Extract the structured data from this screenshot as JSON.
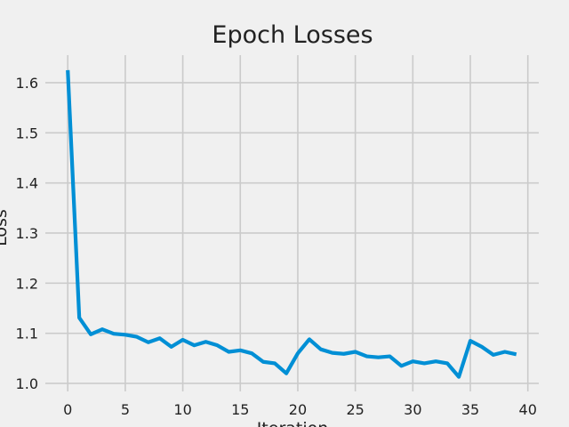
{
  "chart_data": {
    "type": "line",
    "title": "Epoch Losses",
    "xlabel": "Iteration",
    "ylabel": "Loss",
    "xlim": [
      -1.95,
      40.95
    ],
    "ylim": [
      0.984,
      1.655
    ],
    "xticks": [
      0,
      5,
      10,
      15,
      20,
      25,
      30,
      35,
      40
    ],
    "yticks": [
      1.0,
      1.1,
      1.2,
      1.3,
      1.4,
      1.5,
      1.6
    ],
    "grid": true,
    "series": [
      {
        "x": [
          0,
          1,
          2,
          3,
          4,
          5,
          6,
          7,
          8,
          9,
          10,
          11,
          12,
          13,
          14,
          15,
          16,
          17,
          18,
          19,
          20,
          21,
          22,
          23,
          24,
          25,
          26,
          27,
          28,
          29,
          30,
          31,
          32,
          33,
          34,
          35,
          36,
          37,
          38,
          39
        ],
        "values": [
          1.625,
          1.131,
          1.098,
          1.108,
          1.099,
          1.097,
          1.093,
          1.082,
          1.09,
          1.073,
          1.087,
          1.076,
          1.083,
          1.076,
          1.063,
          1.066,
          1.06,
          1.043,
          1.04,
          1.02,
          1.06,
          1.088,
          1.068,
          1.061,
          1.059,
          1.063,
          1.054,
          1.052,
          1.054,
          1.035,
          1.044,
          1.04,
          1.044,
          1.04,
          1.013,
          1.085,
          1.073,
          1.057,
          1.063,
          1.058
        ]
      }
    ]
  },
  "colors": {
    "background": "#f0f0f0",
    "grid": "#cbcbcb",
    "line": "#008fd5",
    "text": "#222222"
  }
}
